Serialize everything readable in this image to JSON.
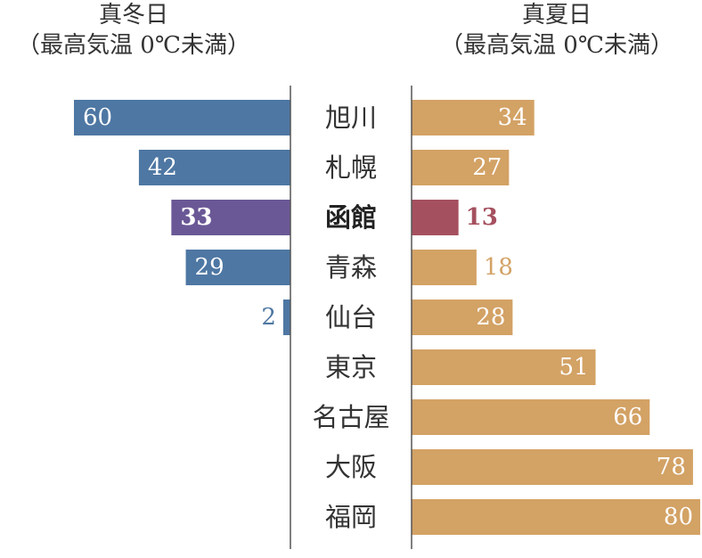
{
  "chart_data": [
    {
      "type": "bar",
      "title": "真冬日",
      "subtitle": "（最高気温 0℃未満）",
      "categories": [
        "旭川",
        "札幌",
        "函館",
        "青森",
        "仙台",
        "東京",
        "名古屋",
        "大阪",
        "福岡"
      ],
      "values": [
        60,
        42,
        33,
        29,
        2,
        null,
        null,
        null,
        null
      ],
      "highlight": "函館",
      "colors": {
        "bar": "#4e77a3",
        "highlight": "#6a5896",
        "outside_label": "#4e77a3"
      },
      "orientation": "horizontal",
      "direction": "right-to-left"
    },
    {
      "type": "bar",
      "title": "真夏日",
      "subtitle": "（最高気温 0℃未満）",
      "categories": [
        "旭川",
        "札幌",
        "函館",
        "青森",
        "仙台",
        "東京",
        "名古屋",
        "大阪",
        "福岡"
      ],
      "values": [
        34,
        27,
        13,
        18,
        28,
        51,
        66,
        78,
        80
      ],
      "highlight": "函館",
      "colors": {
        "bar": "#d3a265",
        "highlight": "#a5505f",
        "outside_label": "#d3a265"
      },
      "orientation": "horizontal",
      "direction": "left-to-right"
    }
  ]
}
